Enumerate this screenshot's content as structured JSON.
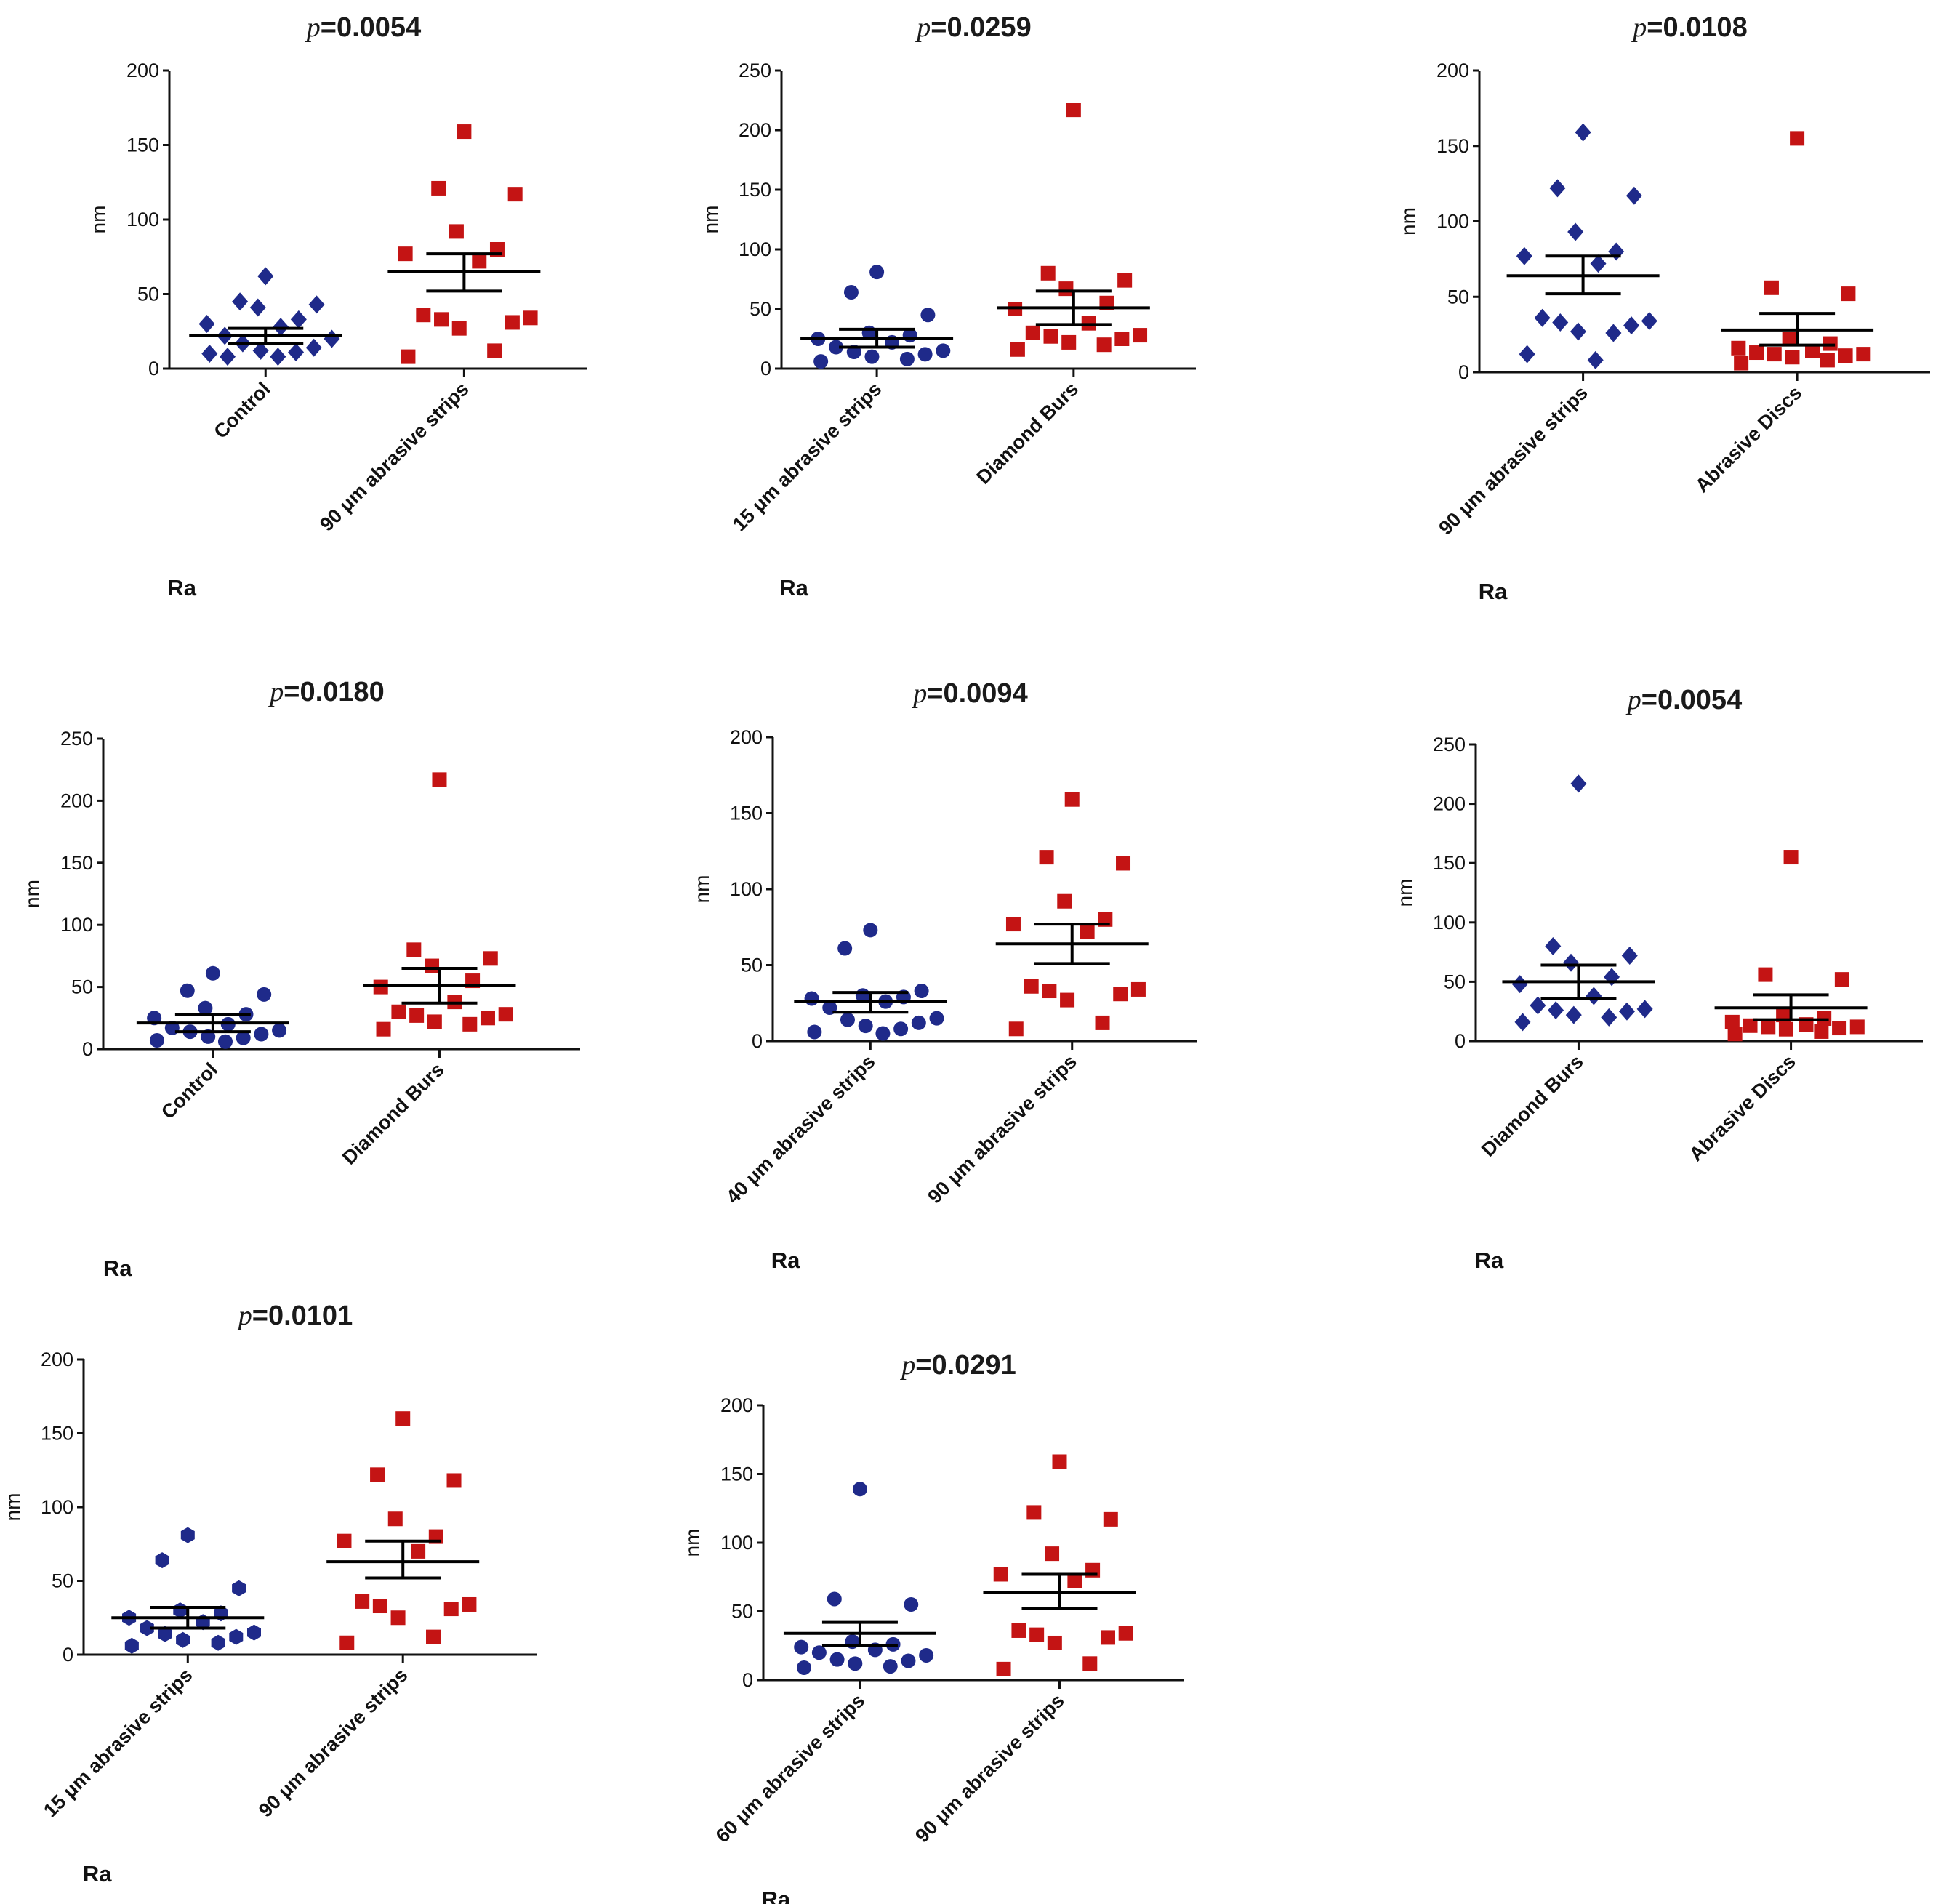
{
  "colors": {
    "series1": "#1f2a8a",
    "series2": "#c41414",
    "axis": "#111111"
  },
  "chart_data": [
    {
      "type": "scatter",
      "title_p": "p",
      "title_value": "=0.0054",
      "ylabel": "nm",
      "xlabel": "Ra",
      "ylim": [
        0,
        200
      ],
      "yticks": [
        0,
        50,
        100,
        150,
        200
      ],
      "categories": [
        "Control",
        "90 μm abrasive strips"
      ],
      "series": [
        {
          "name": "Control",
          "marker": "diamond",
          "values": [
            62,
            45,
            43,
            41,
            33,
            30,
            28,
            22,
            20,
            17,
            14,
            12,
            11,
            10,
            8,
            8
          ],
          "mean": 22,
          "sem_upper": 27,
          "sem_lower": 17
        },
        {
          "name": "90 μm abrasive strips",
          "marker": "square",
          "values": [
            159,
            121,
            117,
            92,
            80,
            77,
            72,
            36,
            34,
            33,
            31,
            27,
            12,
            8
          ],
          "mean": 65,
          "sem_upper": 77,
          "sem_lower": 52
        }
      ]
    },
    {
      "type": "scatter",
      "title_p": "p",
      "title_value": "=0.0259",
      "ylabel": "nm",
      "xlabel": "Ra",
      "ylim": [
        0,
        250
      ],
      "yticks": [
        0,
        50,
        100,
        150,
        200,
        250
      ],
      "categories": [
        "15 μm abrasive strips",
        "Diamond Burs"
      ],
      "series": [
        {
          "name": "15 μm abrasive strips",
          "marker": "circle",
          "values": [
            81,
            64,
            45,
            30,
            28,
            25,
            22,
            18,
            15,
            14,
            12,
            10,
            8,
            6
          ],
          "mean": 25,
          "sem_upper": 33,
          "sem_lower": 18
        },
        {
          "name": "Diamond Burs",
          "marker": "square",
          "values": [
            217,
            80,
            74,
            67,
            55,
            50,
            38,
            30,
            28,
            27,
            25,
            22,
            20,
            16
          ],
          "mean": 51,
          "sem_upper": 65,
          "sem_lower": 37
        }
      ]
    },
    {
      "type": "scatter",
      "title_p": "p",
      "title_value": "=0.0108",
      "ylabel": "nm",
      "xlabel": "Ra",
      "ylim": [
        0,
        200
      ],
      "yticks": [
        0,
        50,
        100,
        150,
        200
      ],
      "categories": [
        "90 μm abrasive strips",
        "Abrasive Discs"
      ],
      "series": [
        {
          "name": "90 μm abrasive strips",
          "marker": "diamond",
          "values": [
            159,
            122,
            117,
            93,
            80,
            77,
            72,
            36,
            34,
            33,
            31,
            27,
            26,
            12,
            8
          ],
          "mean": 64,
          "sem_upper": 77,
          "sem_lower": 52
        },
        {
          "name": "Abrasive Discs",
          "marker": "square",
          "values": [
            155,
            56,
            52,
            22,
            19,
            16,
            14,
            13,
            12,
            12,
            11,
            10,
            8,
            6
          ],
          "mean": 28,
          "sem_upper": 39,
          "sem_lower": 18
        }
      ]
    },
    {
      "type": "scatter",
      "title_p": "p",
      "title_value": "=0.0180",
      "ylabel": "nm",
      "xlabel": "Ra",
      "ylim": [
        0,
        250
      ],
      "yticks": [
        0,
        50,
        100,
        150,
        200,
        250
      ],
      "categories": [
        "Control",
        "Diamond Burs"
      ],
      "series": [
        {
          "name": "Control",
          "marker": "circle",
          "values": [
            61,
            47,
            44,
            33,
            28,
            25,
            20,
            17,
            15,
            14,
            12,
            10,
            9,
            7,
            6
          ],
          "mean": 21,
          "sem_upper": 28,
          "sem_lower": 14
        },
        {
          "name": "Diamond Burs",
          "marker": "square",
          "values": [
            217,
            80,
            73,
            67,
            55,
            50,
            38,
            30,
            28,
            27,
            25,
            22,
            20,
            16
          ],
          "mean": 51,
          "sem_upper": 65,
          "sem_lower": 37
        }
      ]
    },
    {
      "type": "scatter",
      "title_p": "p",
      "title_value": "=0.0094",
      "ylabel": "nm",
      "xlabel": "Ra",
      "ylim": [
        0,
        200
      ],
      "yticks": [
        0,
        50,
        100,
        150,
        200
      ],
      "categories": [
        "40 μm abrasive strips",
        "90 μm abrasive strips"
      ],
      "series": [
        {
          "name": "40 μm abrasive strips",
          "marker": "circle",
          "values": [
            73,
            61,
            33,
            30,
            29,
            28,
            26,
            22,
            15,
            14,
            12,
            10,
            8,
            6,
            5
          ],
          "mean": 26,
          "sem_upper": 32,
          "sem_lower": 19
        },
        {
          "name": "90 μm abrasive strips",
          "marker": "square",
          "values": [
            159,
            121,
            117,
            92,
            80,
            77,
            72,
            36,
            34,
            33,
            31,
            27,
            12,
            8
          ],
          "mean": 64,
          "sem_upper": 77,
          "sem_lower": 51
        }
      ]
    },
    {
      "type": "scatter",
      "title_p": "p",
      "title_value": "=0.0054",
      "ylabel": "nm",
      "xlabel": "Ra",
      "ylim": [
        0,
        250
      ],
      "yticks": [
        0,
        50,
        100,
        150,
        200,
        250
      ],
      "categories": [
        "Diamond Burs",
        "Abrasive Discs"
      ],
      "series": [
        {
          "name": "Diamond Burs",
          "marker": "diamond",
          "values": [
            217,
            80,
            72,
            66,
            54,
            48,
            38,
            30,
            27,
            26,
            25,
            22,
            20,
            16
          ],
          "mean": 50,
          "sem_upper": 64,
          "sem_lower": 36
        },
        {
          "name": "Abrasive Discs",
          "marker": "square",
          "values": [
            155,
            56,
            52,
            22,
            19,
            16,
            14,
            13,
            12,
            12,
            11,
            10,
            8,
            6
          ],
          "mean": 28,
          "sem_upper": 39,
          "sem_lower": 18
        }
      ]
    },
    {
      "type": "scatter",
      "title_p": "p",
      "title_value": "=0.0101",
      "ylabel": "nm",
      "xlabel": "Ra",
      "ylim": [
        0,
        200
      ],
      "yticks": [
        0,
        50,
        100,
        150,
        200
      ],
      "categories": [
        "15 μm abrasive strips",
        "90 μm abrasive strips"
      ],
      "series": [
        {
          "name": "15 μm abrasive strips",
          "marker": "hexagon",
          "values": [
            81,
            64,
            45,
            30,
            28,
            25,
            22,
            18,
            15,
            14,
            12,
            10,
            8,
            6
          ],
          "mean": 25,
          "sem_upper": 32,
          "sem_lower": 18
        },
        {
          "name": "90 μm abrasive strips",
          "marker": "square",
          "values": [
            160,
            122,
            118,
            92,
            80,
            77,
            70,
            36,
            34,
            33,
            31,
            25,
            12,
            8
          ],
          "mean": 63,
          "sem_upper": 77,
          "sem_lower": 52
        }
      ]
    },
    {
      "type": "scatter",
      "title_p": "p",
      "title_value": "=0.0291",
      "ylabel": "nm",
      "xlabel": "Ra",
      "ylim": [
        0,
        200
      ],
      "yticks": [
        0,
        50,
        100,
        150,
        200
      ],
      "categories": [
        "60 μm abrasive strips",
        "90 μm abrasive strips"
      ],
      "series": [
        {
          "name": "60 μm abrasive strips",
          "marker": "circle",
          "values": [
            139,
            59,
            55,
            28,
            26,
            24,
            22,
            20,
            18,
            15,
            14,
            12,
            10,
            9
          ],
          "mean": 34,
          "sem_upper": 42,
          "sem_lower": 25
        },
        {
          "name": "90 μm abrasive strips",
          "marker": "square",
          "values": [
            159,
            122,
            117,
            92,
            80,
            77,
            72,
            36,
            34,
            33,
            31,
            27,
            12,
            8
          ],
          "mean": 64,
          "sem_upper": 77,
          "sem_lower": 52
        }
      ]
    }
  ]
}
